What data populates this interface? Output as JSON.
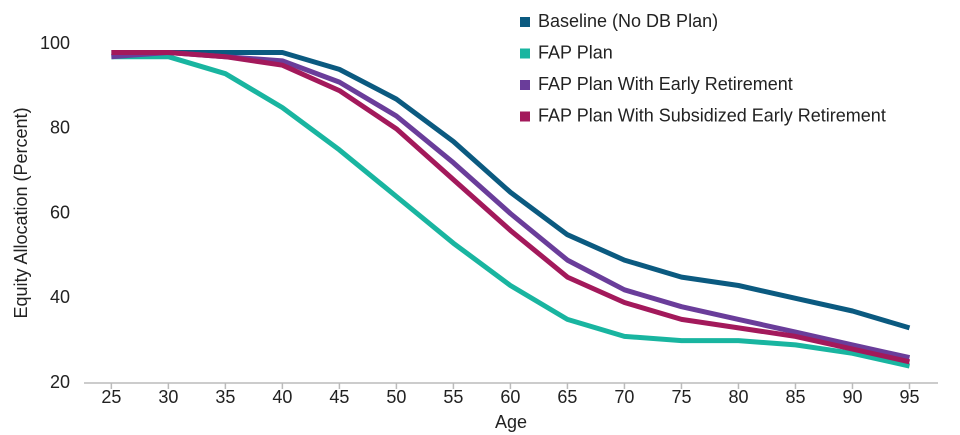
{
  "chart_data": {
    "type": "line",
    "x_label": "Age",
    "y_label": "Equity Allocation (Percent)",
    "x": [
      25,
      30,
      35,
      40,
      45,
      50,
      55,
      60,
      65,
      70,
      75,
      80,
      85,
      90,
      95
    ],
    "xlim": [
      22.6,
      97.5
    ],
    "xticks": [
      25,
      30,
      35,
      40,
      45,
      50,
      55,
      60,
      65,
      70,
      75,
      80,
      85,
      90,
      95
    ],
    "ylim": [
      20,
      100
    ],
    "yticks": [
      20,
      40,
      60,
      80,
      100
    ],
    "grid": false,
    "legend": "top-right",
    "series": [
      {
        "name": "Baseline (No DB Plan)",
        "color": "#0b5a80",
        "values": [
          98,
          98,
          98,
          98,
          94,
          87,
          77,
          65,
          55,
          49,
          45,
          43,
          40,
          37,
          33
        ]
      },
      {
        "name": "FAP Plan",
        "color": "#19b5a0",
        "values": [
          97,
          97,
          93,
          85,
          75,
          64,
          53,
          43,
          35,
          31,
          30,
          30,
          29,
          27,
          24
        ]
      },
      {
        "name": "FAP Plan With Early Retirement",
        "color": "#6a3d9a",
        "values": [
          97,
          98,
          97,
          96,
          91,
          83,
          72,
          60,
          49,
          42,
          38,
          35,
          32,
          29,
          26
        ]
      },
      {
        "name": "FAP Plan With Subsidized Early Retirement",
        "color": "#a3195b",
        "values": [
          98,
          98,
          97,
          95,
          89,
          80,
          68,
          56,
          45,
          39,
          35,
          33,
          31,
          28,
          25
        ]
      }
    ]
  }
}
